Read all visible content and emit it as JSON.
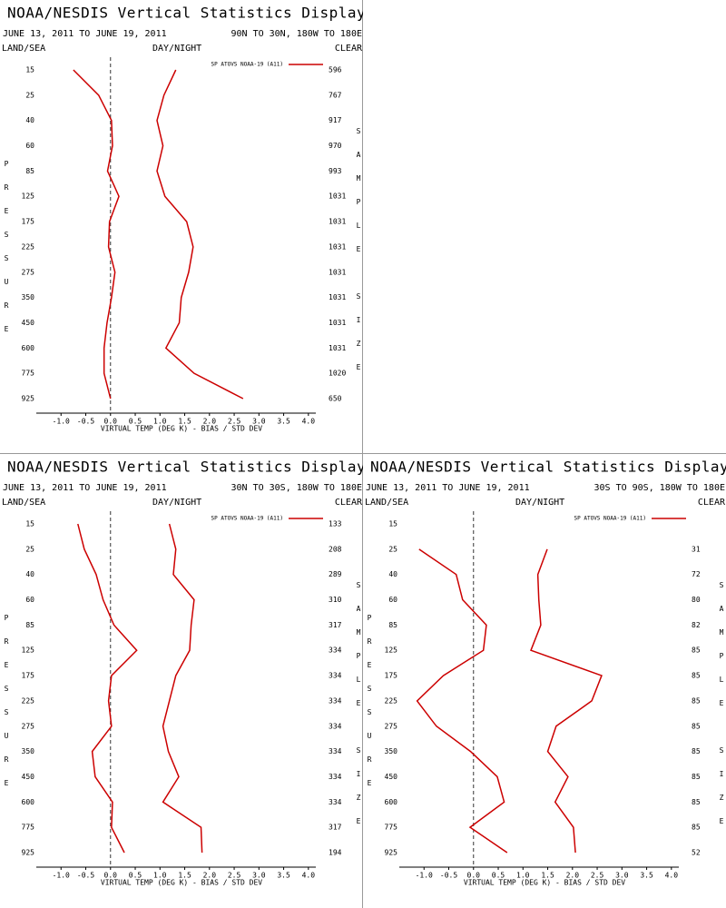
{
  "chart_data": [
    {
      "type": "line",
      "title": "NOAA/NESDIS Vertical Statistics Display",
      "subtitle": "JUNE 13, 2011 TO JUNE 19, 2011",
      "region": "90N TO 30N, 180W TO 180E",
      "land_sea": "LAND/SEA",
      "day_night": "DAY/NIGHT",
      "clear": "CLEAR",
      "y_label": "PRESSURE",
      "y2_label": "SAMPLE SIZE",
      "x_label": "VIRTUAL TEMP (DEG K) - BIAS / STD DEV",
      "categories": [
        15,
        25,
        40,
        60,
        85,
        125,
        175,
        225,
        275,
        350,
        450,
        600,
        775,
        925
      ],
      "series": [
        {
          "name": "SP ATOVS NOAA-19 (A11)",
          "color": "#cc0000",
          "values": [
            -0.75,
            -0.24,
            0.02,
            0.04,
            -0.06,
            0.17,
            -0.02,
            -0.04,
            0.09,
            0.02,
            -0.07,
            -0.13,
            -0.13,
            0.0
          ],
          "std_dev": [
            1.32,
            1.08,
            0.94,
            1.06,
            0.94,
            1.1,
            1.54,
            1.67,
            1.58,
            1.43,
            1.39,
            1.12,
            1.69,
            2.68
          ]
        }
      ],
      "sample_sizes": [
        596,
        767,
        917,
        970,
        993,
        1031,
        1031,
        1031,
        1031,
        1031,
        1031,
        1031,
        1020,
        650
      ],
      "xlim": [
        -1.5,
        4.15
      ],
      "xticks": [
        {
          "value": -1,
          "label": "-1.0"
        },
        -0.5,
        {
          "value": 0,
          "label": "0.0"
        },
        0.5,
        {
          "value": 1,
          "label": "1.0"
        },
        1.5,
        {
          "value": 2,
          "label": "2.0"
        },
        2.5,
        {
          "value": 3,
          "label": "3.0"
        },
        3.5,
        {
          "value": 4,
          "label": "4.0"
        }
      ],
      "zero_line": true
    },
    {
      "type": "line",
      "title": "NOAA/NESDIS Vertical Statistics Display",
      "subtitle": "JUNE 13, 2011 TO JUNE 19, 2011",
      "region": "30N TO 30S, 180W TO 180E",
      "land_sea": "LAND/SEA",
      "day_night": "DAY/NIGHT",
      "clear": "CLEAR",
      "y_label": "PRESSURE",
      "y2_label": "SAMPLE SIZE",
      "x_label": "VIRTUAL TEMP (DEG K) - BIAS / STD DEV",
      "categories": [
        15,
        25,
        40,
        60,
        85,
        125,
        175,
        225,
        275,
        350,
        450,
        600,
        775,
        925
      ],
      "series": [
        {
          "name": "SP ATOVS NOAA-19 (A11)",
          "color": "#cc0000",
          "values": [
            -0.66,
            -0.53,
            -0.29,
            -0.15,
            0.07,
            0.53,
            0.02,
            -0.04,
            0.02,
            -0.37,
            -0.31,
            0.04,
            0.02,
            0.28
          ],
          "std_dev": [
            1.19,
            1.32,
            1.27,
            1.69,
            1.63,
            1.6,
            1.32,
            1.19,
            1.06,
            1.17,
            1.38,
            1.06,
            1.83,
            1.85
          ]
        }
      ],
      "sample_sizes": [
        133,
        208,
        289,
        310,
        317,
        334,
        334,
        334,
        334,
        334,
        334,
        334,
        317,
        194
      ],
      "xlim": [
        -1.5,
        4.15
      ],
      "xticks": [
        {
          "value": -1,
          "label": "-1.0"
        },
        -0.5,
        {
          "value": 0,
          "label": "0.0"
        },
        0.5,
        {
          "value": 1,
          "label": "1.0"
        },
        1.5,
        {
          "value": 2,
          "label": "2.0"
        },
        2.5,
        {
          "value": 3,
          "label": "3.0"
        },
        3.5,
        {
          "value": 4,
          "label": "4.0"
        }
      ],
      "zero_line": true
    },
    {
      "type": "line",
      "title": "NOAA/NESDIS Vertical Statistics Display",
      "subtitle": "JUNE 13, 2011 TO JUNE 19, 2011",
      "region": "30S TO 90S, 180W TO 180E",
      "land_sea": "LAND/SEA",
      "day_night": "DAY/NIGHT",
      "clear": "CLEAR",
      "y_label": "PRESSURE",
      "y2_label": "SAMPLE SIZE",
      "x_label": "VIRTUAL TEMP (DEG K) - BIAS / STD DEV",
      "categories": [
        15,
        25,
        40,
        60,
        85,
        125,
        175,
        225,
        275,
        350,
        450,
        600,
        775,
        925
      ],
      "series": [
        {
          "name": "SP ATOVS NOAA-19 (A11)",
          "color": "#cc0000",
          "values": [
            null,
            -1.1,
            -0.35,
            -0.22,
            0.26,
            0.2,
            -0.61,
            -1.14,
            -0.75,
            -0.06,
            0.48,
            0.62,
            -0.07,
            0.68
          ],
          "std_dev": [
            null,
            1.49,
            1.3,
            1.32,
            1.36,
            1.16,
            2.59,
            2.39,
            1.67,
            1.5,
            1.91,
            1.65,
            2.02,
            2.06
          ]
        }
      ],
      "sample_sizes": [
        null,
        31,
        72,
        80,
        82,
        85,
        85,
        85,
        85,
        85,
        85,
        85,
        85,
        52
      ],
      "xlim": [
        -1.5,
        4.15
      ],
      "xticks": [
        {
          "value": -1,
          "label": "-1.0"
        },
        -0.5,
        {
          "value": 0,
          "label": "0.0"
        },
        0.5,
        {
          "value": 1,
          "label": "1.0"
        },
        1.5,
        {
          "value": 2,
          "label": "2.0"
        },
        2.5,
        {
          "value": 3,
          "label": "3.0"
        },
        3.5,
        {
          "value": 4,
          "label": "4.0"
        }
      ],
      "zero_line": true
    }
  ]
}
